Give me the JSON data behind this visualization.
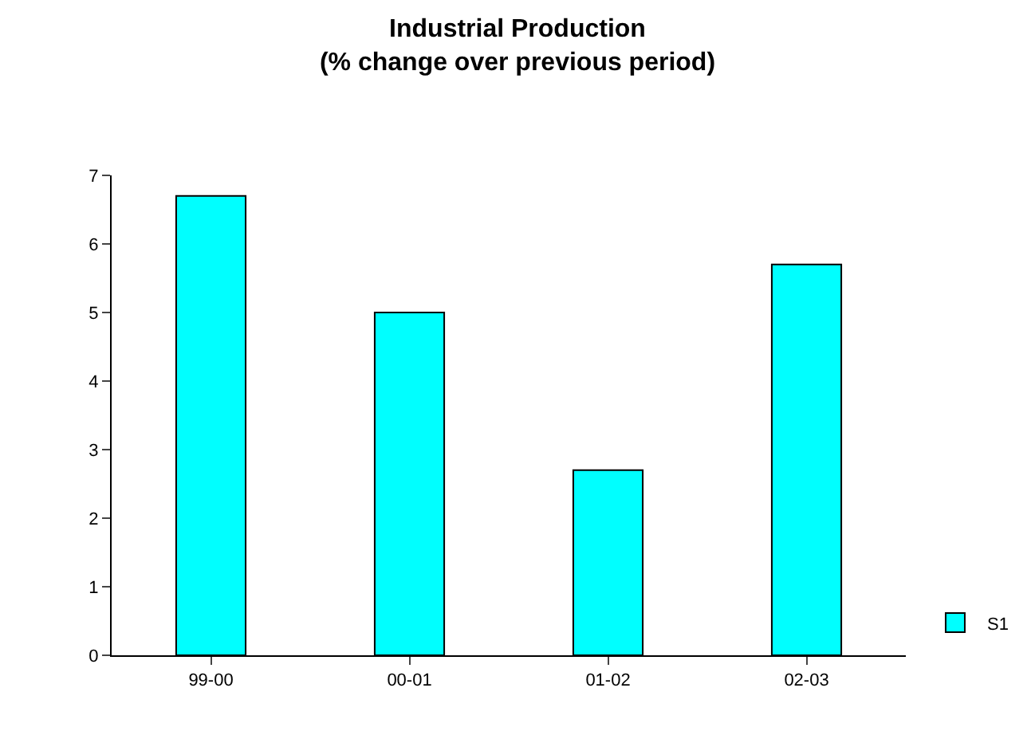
{
  "chart_data": {
    "type": "bar",
    "title": "Industrial Production\n(% change over previous period)",
    "categories": [
      "99-00",
      "00-01",
      "01-02",
      "02-03"
    ],
    "series": [
      {
        "name": "S1",
        "color": "#00ffff",
        "values": [
          6.7,
          5.0,
          2.7,
          5.7
        ]
      }
    ],
    "ylim": [
      0,
      7
    ],
    "yticks": [
      0,
      1,
      2,
      3,
      4,
      5,
      6,
      7
    ],
    "grid": false,
    "legend": "right"
  }
}
